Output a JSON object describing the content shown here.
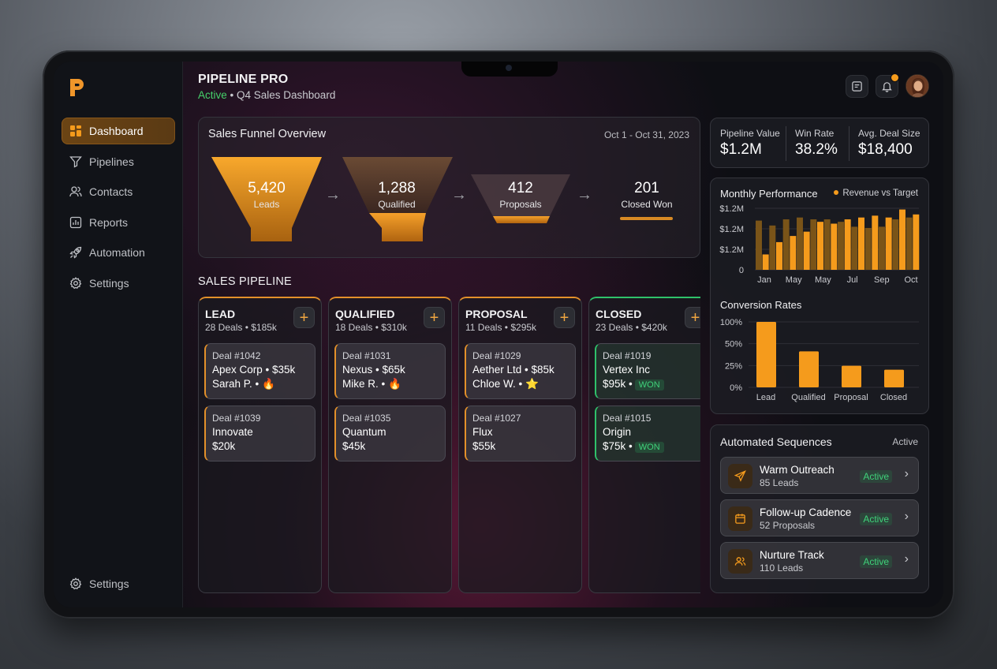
{
  "app": {
    "title": "PIPELINE PRO",
    "status": "Active",
    "subtitle": "Q4 Sales Dashboard"
  },
  "sidebar": {
    "items": [
      {
        "label": "Dashboard",
        "icon": "grid-icon",
        "active": true
      },
      {
        "label": "Pipelines",
        "icon": "filter-icon"
      },
      {
        "label": "Contacts",
        "icon": "users-icon"
      },
      {
        "label": "Reports",
        "icon": "bar-chart-icon"
      },
      {
        "label": "Automation",
        "icon": "rocket-icon"
      },
      {
        "label": "Settings",
        "icon": "gear-icon"
      }
    ],
    "bottom": {
      "label": "Settings",
      "icon": "gear-icon"
    }
  },
  "header": {
    "icons": [
      "message-icon",
      "bell-icon"
    ],
    "notification_dot_color": "#f59b1c"
  },
  "funnel": {
    "title": "Sales Funnel Overview",
    "date_range": "Oct 1 - Oct 31, 2023",
    "stages": [
      {
        "value": "5,420",
        "label": "Leads"
      },
      {
        "value": "1,288",
        "label": "Qualified"
      },
      {
        "value": "412",
        "label": "Proposals"
      },
      {
        "value": "201",
        "label": "Closed Won"
      }
    ]
  },
  "pipeline": {
    "title": "SALES PIPELINE",
    "columns": [
      {
        "name": "LEAD",
        "summary": "28 Deals • $185k",
        "cards": [
          {
            "id": "Deal #1042",
            "line1": "Apex Corp • $35k",
            "line2": "Sarah P. • 🔥"
          },
          {
            "id": "Deal #1039",
            "line1": "Innovate",
            "line2": "$20k"
          }
        ]
      },
      {
        "name": "QUALIFIED",
        "summary": "18 Deals • $310k",
        "cards": [
          {
            "id": "Deal #1031",
            "line1": "Nexus • $65k",
            "line2": "Mike R. • 🔥"
          },
          {
            "id": "Deal #1035",
            "line1": "Quantum",
            "line2": "$45k"
          }
        ]
      },
      {
        "name": "PROPOSAL",
        "summary": "11 Deals • $295k",
        "cards": [
          {
            "id": "Deal #1029",
            "line1": "Aether Ltd • $85k",
            "line2": "Chloe W. • ⭐"
          },
          {
            "id": "Deal #1027",
            "line1": "Flux",
            "line2": "$55k"
          }
        ]
      },
      {
        "name": "CLOSED",
        "summary": "23 Deals • $420k",
        "cards": [
          {
            "id": "Deal #1019",
            "line1": "Vertex Inc",
            "line2": "$95k •",
            "tag": "WON"
          },
          {
            "id": "Deal #1015",
            "line1": "Origin",
            "line2": "$75k •",
            "tag": "WON"
          }
        ]
      }
    ]
  },
  "kpis": [
    {
      "label": "Pipeline Value",
      "value": "$1.2M"
    },
    {
      "label": "Win Rate",
      "value": "38.2%"
    },
    {
      "label": "Avg. Deal Size",
      "value": "$18,400"
    }
  ],
  "chart_data": [
    {
      "type": "bar",
      "title": "Monthly Performance",
      "legend": "Revenue vs Target",
      "legend_placement": "top-right",
      "x_tick_labels": [
        "Jan",
        "May",
        "May",
        "Jul",
        "Sep",
        "Oct"
      ],
      "y_tick_labels": [
        "$1.2M",
        "$1.2M",
        "$1.2M",
        "0"
      ],
      "series": [
        {
          "name": "Revenue",
          "color": "#f59b1c",
          "values": [
            0.25,
            0.45,
            0.55,
            0.62,
            0.78,
            0.75,
            0.82,
            0.85,
            0.88,
            0.85,
            0.98,
            0.9
          ]
        },
        {
          "name": "Target",
          "color": "#7a5418",
          "values": [
            0.8,
            0.72,
            0.82,
            0.85,
            0.82,
            0.82,
            0.78,
            0.7,
            0.68,
            0.7,
            0.82,
            0.85
          ]
        }
      ],
      "grid": true
    },
    {
      "type": "bar",
      "title": "Conversion Rates",
      "categories": [
        "Lead",
        "Qualified",
        "Proposal",
        "Closed"
      ],
      "values": [
        100,
        55,
        33,
        27
      ],
      "y_tick_labels": [
        "100%",
        "50%",
        "25%",
        "0%"
      ],
      "ylim": [
        0,
        100
      ],
      "grid": true,
      "color": "#f59b1c"
    }
  ],
  "sequences": {
    "title": "Automated Sequences",
    "status": "Active",
    "items": [
      {
        "name": "Warm Outreach",
        "meta": "85 Leads",
        "status": "Active",
        "icon": "send-icon"
      },
      {
        "name": "Follow-up Cadence",
        "meta": "52 Proposals",
        "status": "Active",
        "icon": "calendar-icon"
      },
      {
        "name": "Nurture Track",
        "meta": "110 Leads",
        "status": "Active",
        "icon": "people-icon"
      }
    ]
  }
}
